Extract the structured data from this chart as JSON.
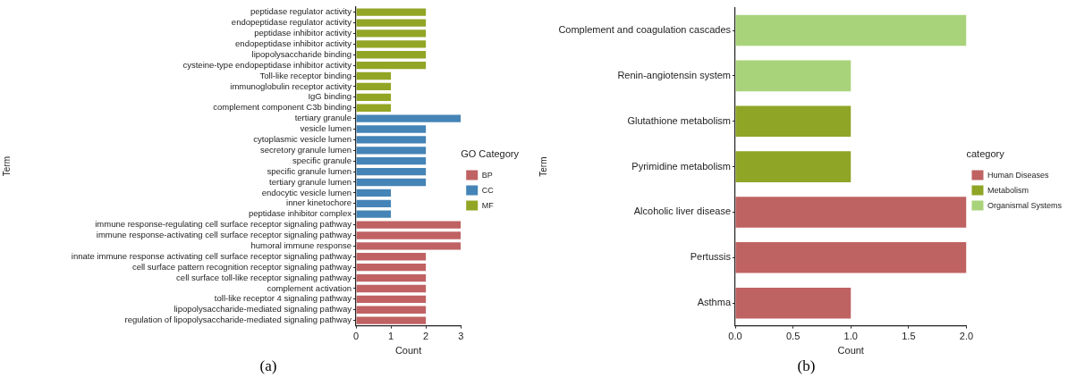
{
  "chart_data": [
    {
      "type": "bar",
      "orientation": "horizontal",
      "xlabel": "Count",
      "ylabel": "Term",
      "legend_title": "GO Category",
      "legend": "right",
      "grid": false,
      "categories": [
        "peptidase regulator activity",
        "endopeptidase regulator activity",
        "peptidase inhibitor activity",
        "endopeptidase inhibitor activity",
        "lipopolysaccharide binding",
        "cysteine-type endopeptidase inhibitor activity",
        "Toll-like receptor binding",
        "immunoglobulin receptor activity",
        "IgG binding",
        "complement component C3b binding",
        "tertiary granule",
        "vesicle lumen",
        "cytoplasmic vesicle lumen",
        "secretory granule lumen",
        "specific granule",
        "specific granule lumen",
        "tertiary granule lumen",
        "endocytic vesicle lumen",
        "inner kinetochore",
        "peptidase inhibitor complex",
        "immune response-regulating cell surface receptor signaling pathway",
        "immune response-activating cell surface receptor signaling pathway",
        "humoral immune response",
        "innate immune response activating cell surface receptor signaling pathway",
        "cell surface pattern recognition receptor signaling pathway",
        "cell surface toll-like receptor signaling pathway",
        "complement activation",
        "toll-like receptor 4 signaling pathway",
        "lipopolysaccharide-mediated signaling pathway",
        "regulation of lipopolysaccharide-mediated signaling pathway"
      ],
      "series": [
        {
          "name": "BP",
          "color": "#c06263",
          "values": [
            null,
            null,
            null,
            null,
            null,
            null,
            null,
            null,
            null,
            null,
            null,
            null,
            null,
            null,
            null,
            null,
            null,
            null,
            null,
            null,
            3,
            3,
            3,
            2,
            2,
            2,
            2,
            2,
            2,
            2
          ]
        },
        {
          "name": "CC",
          "color": "#4584b6",
          "values": [
            null,
            null,
            null,
            null,
            null,
            null,
            null,
            null,
            null,
            null,
            3,
            2,
            2,
            2,
            2,
            2,
            2,
            1,
            1,
            1,
            null,
            null,
            null,
            null,
            null,
            null,
            null,
            null,
            null,
            null
          ]
        },
        {
          "name": "MF",
          "color": "#93a525",
          "values": [
            2,
            2,
            2,
            2,
            2,
            2,
            1,
            1,
            1,
            1,
            null,
            null,
            null,
            null,
            null,
            null,
            null,
            null,
            null,
            null,
            null,
            null,
            null,
            null,
            null,
            null,
            null,
            null,
            null,
            null
          ]
        }
      ],
      "xlim": [
        0,
        3
      ],
      "xticks": [
        0,
        1,
        2,
        3
      ],
      "annotations": [
        "(a)"
      ]
    },
    {
      "type": "bar",
      "orientation": "horizontal",
      "xlabel": "Count",
      "ylabel": "Term",
      "legend_title": "category",
      "legend": "right",
      "grid": false,
      "categories": [
        "Complement and coagulation cascades",
        "Renin-angiotensin system",
        "Glutathione metabolism",
        "Pyrimidine metabolism",
        "Alcoholic liver disease",
        "Pertussis",
        "Asthma"
      ],
      "series": [
        {
          "name": "Human Diseases",
          "color": "#bf6262",
          "values": [
            null,
            null,
            null,
            null,
            2,
            2,
            1
          ]
        },
        {
          "name": "Metabolism",
          "color": "#8fa526",
          "values": [
            null,
            null,
            1,
            1,
            null,
            null,
            null
          ]
        },
        {
          "name": "Organismal Systems",
          "color": "#a9d37a",
          "values": [
            2,
            1,
            null,
            null,
            null,
            null,
            null
          ]
        }
      ],
      "xlim": [
        0,
        2
      ],
      "xticks": [
        {
          "value": 0,
          "label": "0.0"
        },
        {
          "value": 0.5,
          "label": "0.5"
        },
        {
          "value": 1,
          "label": "1.0"
        },
        {
          "value": 1.5,
          "label": "1.5"
        },
        {
          "value": 2,
          "label": "2.0"
        }
      ],
      "annotations": [
        "(b)"
      ]
    }
  ]
}
